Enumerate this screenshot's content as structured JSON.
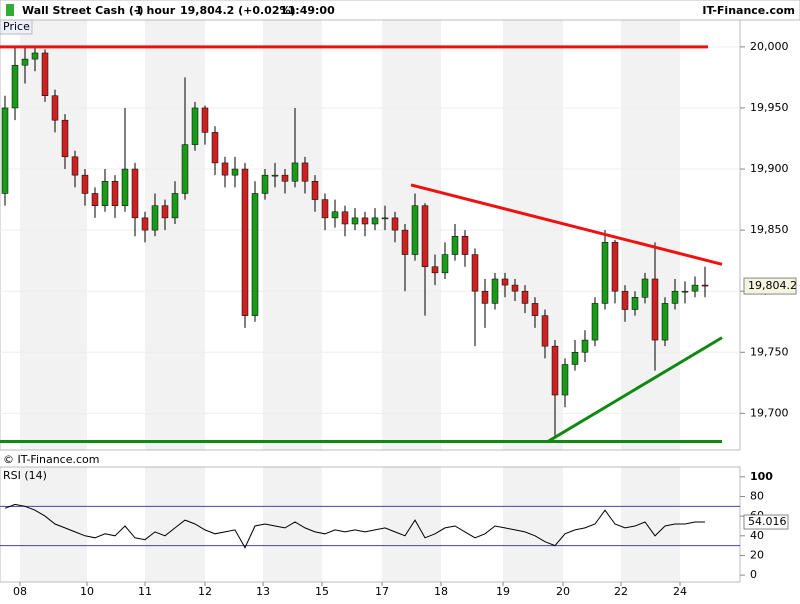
{
  "header": {
    "symbol": "Wall Street Cash (-)",
    "interval": "1 hour",
    "quote": "19,804.2 (+0.02%)",
    "time": "11:49:00",
    "brand": "IT-Finance.com"
  },
  "chart_data": [
    {
      "type": "candlestick",
      "title": "Price",
      "watermark": "© IT-Finance.com",
      "xlim": [
        0,
        74
      ],
      "ylim": [
        19670,
        20022
      ],
      "yticks": [
        {
          "value": 19700,
          "label": "19,700"
        },
        {
          "value": 19750,
          "label": "19,750"
        },
        {
          "value": 19800,
          "label": "19,800"
        },
        {
          "value": 19850,
          "label": "19,850"
        },
        {
          "value": 19900,
          "label": "19,900"
        },
        {
          "value": 19950,
          "label": "19,950"
        },
        {
          "value": 20000,
          "label": "20,000"
        }
      ],
      "up_color": "#1a9a1a",
      "down_color": "#cc2222",
      "open": [
        19880,
        19950,
        19985,
        19990,
        19995,
        19960,
        19940,
        19910,
        19895,
        19880,
        19870,
        19890,
        19870,
        19900,
        19860,
        19850,
        19870,
        19860,
        19880,
        19920,
        19950,
        19930,
        19905,
        19895,
        19900,
        19780,
        19880,
        19895,
        19895,
        19890,
        19905,
        19890,
        19875,
        19860,
        19865,
        19855,
        19860,
        19855,
        19860,
        19860,
        19850,
        19830,
        19870,
        19820,
        19815,
        19830,
        19845,
        19830,
        19800,
        19790,
        19810,
        19805,
        19800,
        19790,
        19780,
        19755,
        19715,
        19740,
        19750,
        19760,
        19790,
        19840,
        19800,
        19785,
        19795,
        19810,
        19760,
        19790,
        19800,
        19800,
        19805
      ],
      "high": [
        19960,
        20000,
        20000,
        20000,
        19998,
        19965,
        19945,
        19915,
        19900,
        19885,
        19900,
        19895,
        19950,
        19905,
        19865,
        19880,
        19875,
        19890,
        19975,
        19955,
        19952,
        19935,
        19910,
        19910,
        19905,
        19890,
        19900,
        19905,
        19900,
        19950,
        19910,
        19895,
        19880,
        19875,
        19870,
        19868,
        19865,
        19868,
        19870,
        19865,
        19855,
        19880,
        19872,
        19830,
        19840,
        19855,
        19850,
        19835,
        19810,
        19815,
        19815,
        19810,
        19805,
        19795,
        19785,
        19760,
        19745,
        19760,
        19768,
        19795,
        19850,
        19842,
        19805,
        19800,
        19815,
        19840,
        19795,
        19810,
        19808,
        19812,
        19820
      ],
      "low": [
        19870,
        19940,
        19970,
        19980,
        19955,
        19930,
        19900,
        19885,
        19870,
        19860,
        19865,
        19860,
        19865,
        19845,
        19840,
        19845,
        19850,
        19855,
        19875,
        19915,
        19920,
        19895,
        19885,
        19885,
        19770,
        19775,
        19875,
        19885,
        19880,
        19885,
        19880,
        19865,
        19850,
        19852,
        19845,
        19850,
        19845,
        19850,
        19850,
        19840,
        19800,
        19825,
        19780,
        19805,
        19810,
        19825,
        19820,
        19755,
        19770,
        19785,
        19795,
        19792,
        19782,
        19770,
        19745,
        19680,
        19705,
        19735,
        19742,
        19755,
        19785,
        19790,
        19775,
        19780,
        19790,
        19735,
        19755,
        19785,
        19790,
        19795,
        19795
      ],
      "close": [
        19950,
        19985,
        19990,
        19995,
        19960,
        19940,
        19910,
        19895,
        19880,
        19870,
        19890,
        19870,
        19900,
        19860,
        19850,
        19870,
        19860,
        19880,
        19920,
        19950,
        19930,
        19905,
        19895,
        19900,
        19780,
        19880,
        19895,
        19895,
        19890,
        19905,
        19890,
        19875,
        19860,
        19865,
        19855,
        19860,
        19855,
        19860,
        19860,
        19850,
        19830,
        19870,
        19820,
        19815,
        19830,
        19845,
        19830,
        19800,
        19790,
        19810,
        19805,
        19800,
        19790,
        19780,
        19755,
        19715,
        19740,
        19750,
        19760,
        19790,
        19840,
        19800,
        19785,
        19795,
        19810,
        19760,
        19790,
        19800,
        19800,
        19805,
        19804.2
      ],
      "last_label": "19,804.2",
      "trendlines": [
        {
          "color": "#ee1111",
          "x": [
            0,
            70.8
          ],
          "y": [
            20000,
            20000
          ]
        },
        {
          "color": "#ee1111",
          "x": [
            41.1,
            72.2
          ],
          "y": [
            19887,
            19822
          ]
        },
        {
          "color": "#118811",
          "x": [
            54.8,
            72.2
          ],
          "y": [
            19677,
            19762
          ]
        },
        {
          "color": "#118811",
          "x": [
            0,
            72.2
          ],
          "y": [
            19677,
            19677
          ]
        }
      ]
    },
    {
      "type": "line",
      "title": "RSI (14)",
      "color": "#000000",
      "xlim": [
        0,
        74
      ],
      "ylim": [
        -7,
        110
      ],
      "yticks": [
        0,
        20,
        40,
        60,
        80,
        100
      ],
      "levels": [
        30,
        70
      ],
      "level_color": "#4444aa",
      "values": [
        68,
        72,
        70,
        66,
        60,
        52,
        48,
        44,
        40,
        38,
        42,
        40,
        50,
        38,
        36,
        44,
        40,
        48,
        56,
        52,
        46,
        42,
        44,
        46,
        28,
        50,
        52,
        50,
        48,
        54,
        48,
        44,
        42,
        46,
        44,
        46,
        44,
        46,
        48,
        44,
        40,
        56,
        38,
        42,
        48,
        50,
        44,
        38,
        42,
        50,
        48,
        46,
        44,
        40,
        34,
        30,
        42,
        46,
        48,
        52,
        66,
        52,
        48,
        50,
        54,
        40,
        50,
        52,
        52,
        54,
        54.016
      ],
      "xticks": [
        {
          "value": 2,
          "label": "08"
        },
        {
          "value": 8.7,
          "label": "10"
        },
        {
          "value": 14.5,
          "label": "11"
        },
        {
          "value": 20.5,
          "label": "12"
        },
        {
          "value": 26.3,
          "label": "13"
        },
        {
          "value": 32.2,
          "label": "15"
        },
        {
          "value": 38.2,
          "label": "17"
        },
        {
          "value": 44.1,
          "label": "18"
        },
        {
          "value": 50.3,
          "label": "19"
        },
        {
          "value": 56.3,
          "label": "20"
        },
        {
          "value": 62.1,
          "label": "22"
        },
        {
          "value": 68,
          "label": "24"
        }
      ]
    }
  ]
}
